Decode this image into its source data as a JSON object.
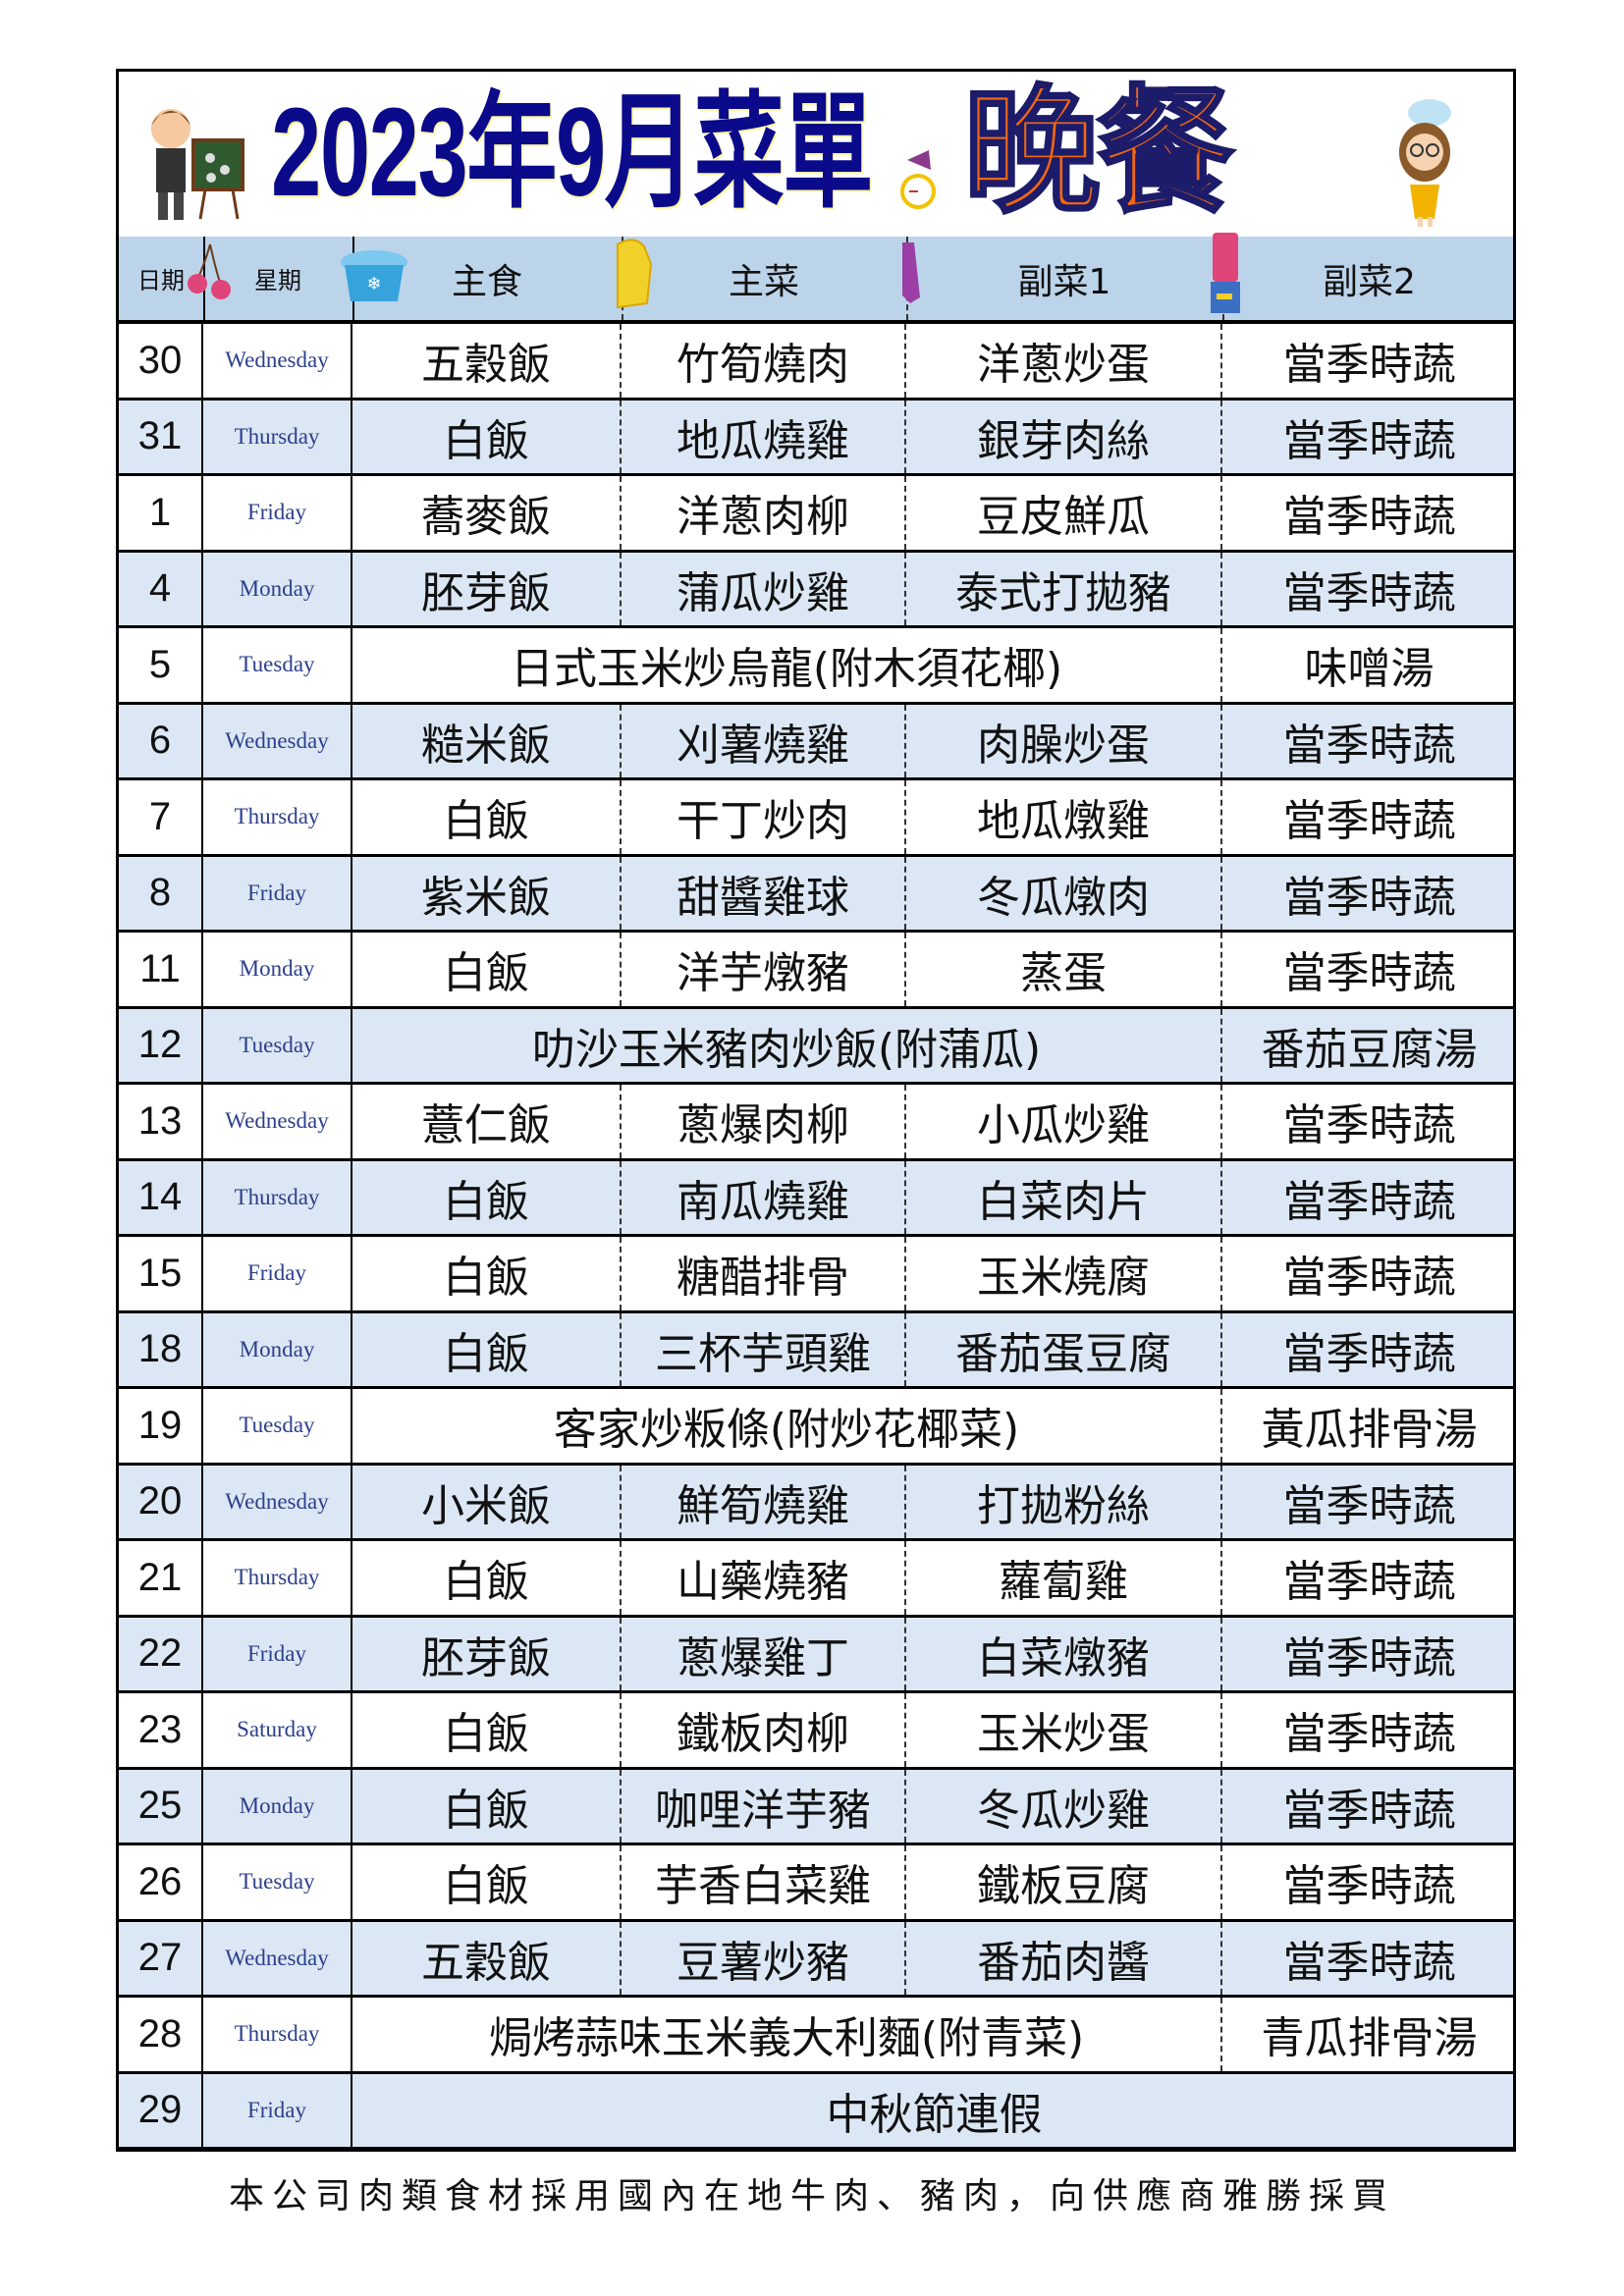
{
  "title": {
    "main": "2023年9月菜單",
    "meal": "晚餐"
  },
  "header": {
    "date": "日期",
    "weekday": "星期",
    "staple": "主食",
    "main_dish": "主菜",
    "side1": "副菜1",
    "side2": "副菜2"
  },
  "rows": [
    {
      "date": "30",
      "day": "Wednesday",
      "staple": "五穀飯",
      "main": "竹筍燒肉",
      "side1": "洋蔥炒蛋",
      "side2": "當季時蔬"
    },
    {
      "date": "31",
      "day": "Thursday",
      "staple": "白飯",
      "main": "地瓜燒雞",
      "side1": "銀芽肉絲",
      "side2": "當季時蔬"
    },
    {
      "date": "1",
      "day": "Friday",
      "staple": "蕎麥飯",
      "main": "洋蔥肉柳",
      "side1": "豆皮鮮瓜",
      "side2": "當季時蔬"
    },
    {
      "date": "4",
      "day": "Monday",
      "staple": "胚芽飯",
      "main": "蒲瓜炒雞",
      "side1": "泰式打拋豬",
      "side2": "當季時蔬"
    },
    {
      "date": "5",
      "day": "Tuesday",
      "combined": "日式玉米炒烏龍(附木須花椰)",
      "side2": "味噌湯"
    },
    {
      "date": "6",
      "day": "Wednesday",
      "staple": "糙米飯",
      "main": "刈薯燒雞",
      "side1": "肉臊炒蛋",
      "side2": "當季時蔬"
    },
    {
      "date": "7",
      "day": "Thursday",
      "staple": "白飯",
      "main": "干丁炒肉",
      "side1": "地瓜燉雞",
      "side2": "當季時蔬"
    },
    {
      "date": "8",
      "day": "Friday",
      "staple": "紫米飯",
      "main": "甜醬雞球",
      "side1": "冬瓜燉肉",
      "side2": "當季時蔬"
    },
    {
      "date": "11",
      "day": "Monday",
      "staple": "白飯",
      "main": "洋芋燉豬",
      "side1": "蒸蛋",
      "side2": "當季時蔬"
    },
    {
      "date": "12",
      "day": "Tuesday",
      "combined": "叻沙玉米豬肉炒飯(附蒲瓜)",
      "side2": "番茄豆腐湯"
    },
    {
      "date": "13",
      "day": "Wednesday",
      "staple": "薏仁飯",
      "main": "蔥爆肉柳",
      "side1": "小瓜炒雞",
      "side2": "當季時蔬"
    },
    {
      "date": "14",
      "day": "Thursday",
      "staple": "白飯",
      "main": "南瓜燒雞",
      "side1": "白菜肉片",
      "side2": "當季時蔬"
    },
    {
      "date": "15",
      "day": "Friday",
      "staple": "白飯",
      "main": "糖醋排骨",
      "side1": "玉米燒腐",
      "side2": "當季時蔬"
    },
    {
      "date": "18",
      "day": "Monday",
      "staple": "白飯",
      "main": "三杯芋頭雞",
      "side1": "番茄蛋豆腐",
      "side2": "當季時蔬"
    },
    {
      "date": "19",
      "day": "Tuesday",
      "combined": "客家炒粄條(附炒花椰菜)",
      "side2": "黃瓜排骨湯"
    },
    {
      "date": "20",
      "day": "Wednesday",
      "staple": "小米飯",
      "main": "鮮筍燒雞",
      "side1": "打拋粉絲",
      "side2": "當季時蔬"
    },
    {
      "date": "21",
      "day": "Thursday",
      "staple": "白飯",
      "main": "山藥燒豬",
      "side1": "蘿蔔雞",
      "side2": "當季時蔬"
    },
    {
      "date": "22",
      "day": "Friday",
      "staple": "胚芽飯",
      "main": "蔥爆雞丁",
      "side1": "白菜燉豬",
      "side2": "當季時蔬"
    },
    {
      "date": "23",
      "day": "Saturday",
      "staple": "白飯",
      "main": "鐵板肉柳",
      "side1": "玉米炒蛋",
      "side2": "當季時蔬"
    },
    {
      "date": "25",
      "day": "Monday",
      "staple": "白飯",
      "main": "咖哩洋芋豬",
      "side1": "冬瓜炒雞",
      "side2": "當季時蔬"
    },
    {
      "date": "26",
      "day": "Tuesday",
      "staple": "白飯",
      "main": "芋香白菜雞",
      "side1": "鐵板豆腐",
      "side2": "當季時蔬"
    },
    {
      "date": "27",
      "day": "Wednesday",
      "staple": "五穀飯",
      "main": "豆薯炒豬",
      "side1": "番茄肉醬",
      "side2": "當季時蔬"
    },
    {
      "date": "28",
      "day": "Thursday",
      "combined": "焗烤蒜味玉米義大利麵(附青菜)",
      "side2": "青瓜排骨湯"
    },
    {
      "date": "29",
      "day": "Friday",
      "holiday": "中秋節連假"
    }
  ],
  "footer": "本公司肉類食材採用國內在地牛肉、豬肉，向供應商雅勝採買",
  "colors": {
    "title_navy": "#0a0a8a",
    "title_orange": "#f5670f",
    "header_bg": "#bcd4ea",
    "row_alt_bg": "#dbe7f4",
    "weekday_text": "#2c3f8c"
  }
}
